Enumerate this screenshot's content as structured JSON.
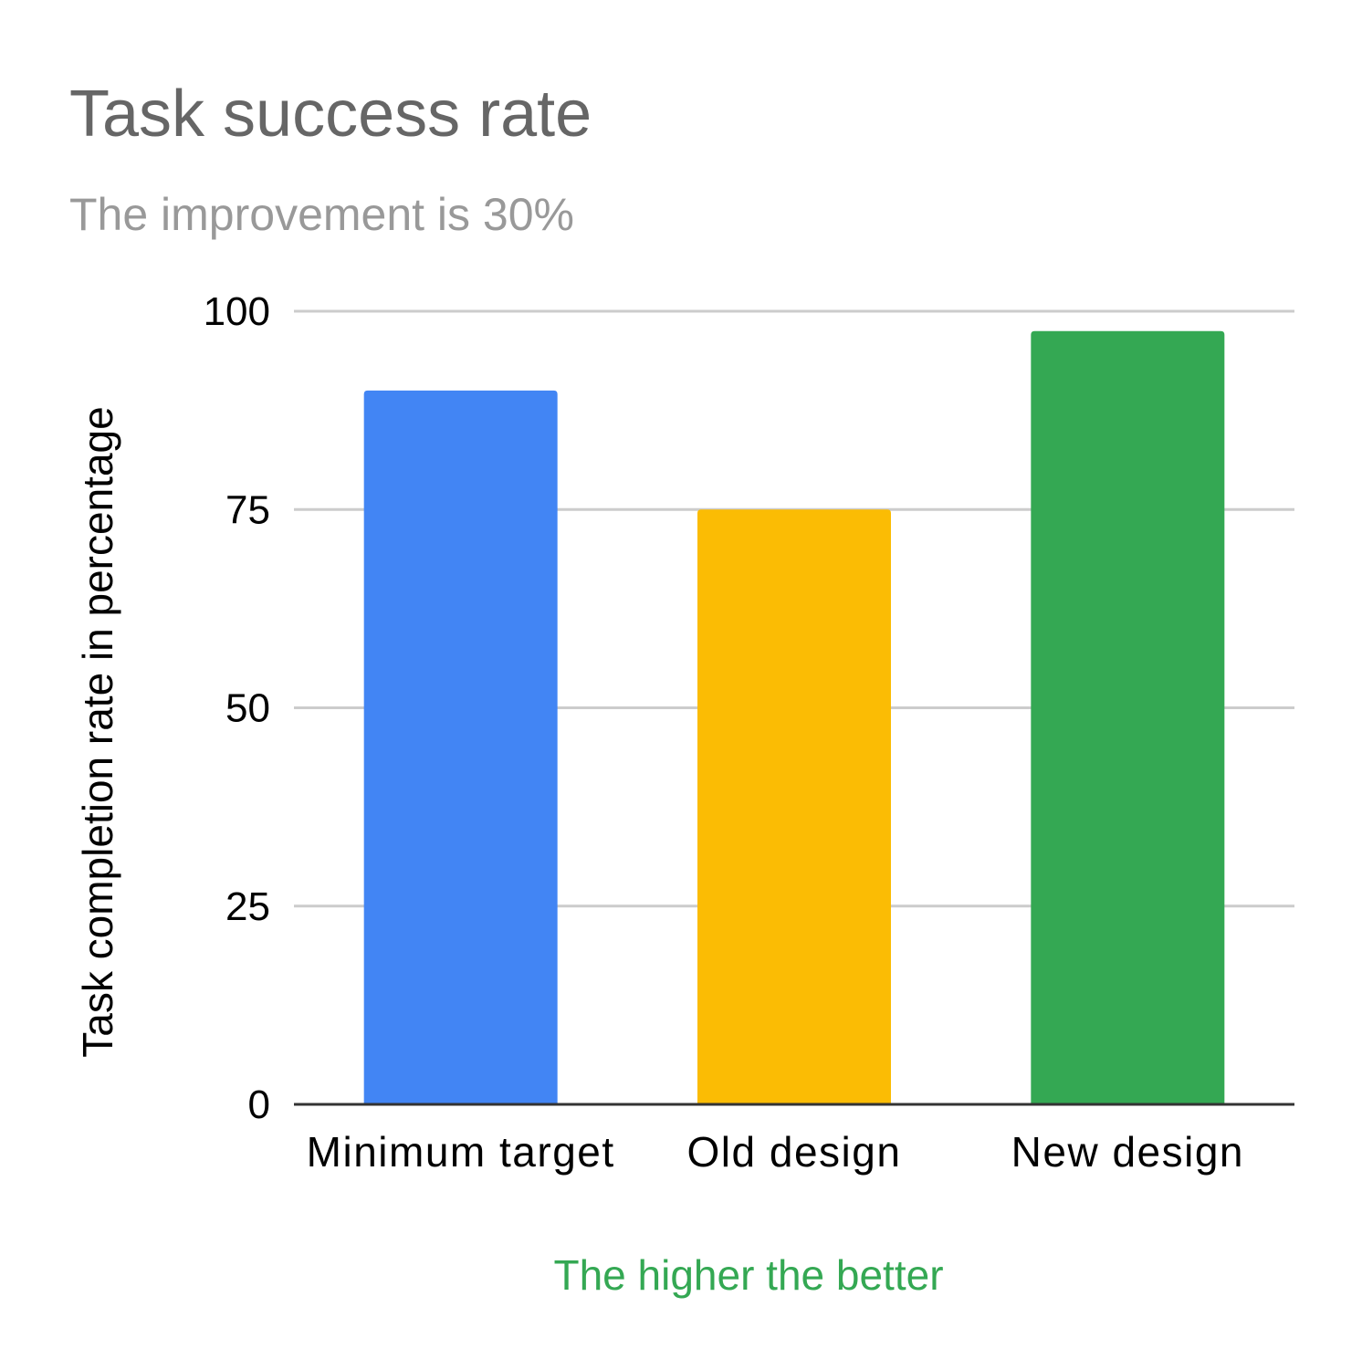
{
  "chart_data": {
    "type": "bar",
    "title": "Task success rate",
    "subtitle": "The improvement is 30%",
    "xlabel": "The higher the better",
    "ylabel": "Task completion rate in percentage",
    "categories": [
      "Minimum target",
      "Old design",
      "New design"
    ],
    "values": [
      90,
      75,
      97.5
    ],
    "colors": [
      "#4285f4",
      "#fbbc04",
      "#34a853"
    ],
    "ylim": [
      0,
      100
    ],
    "yticks": [
      0,
      25,
      50,
      75,
      100
    ],
    "grid": true,
    "legend": "none",
    "style": {
      "title_color": "#666666",
      "subtitle_color": "#999999",
      "xlabel_color": "#34a853",
      "tick_color": "#000000",
      "grid_color": "#cccccc",
      "baseline_color": "#333333"
    }
  }
}
